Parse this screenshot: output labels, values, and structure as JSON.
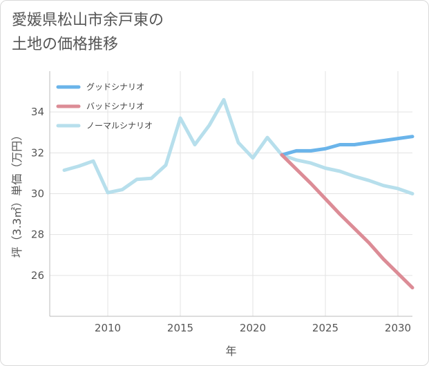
{
  "title": "愛媛県松山市余戸東の\n土地の価格推移",
  "chart_data": {
    "type": "line",
    "xlabel": "年",
    "ylabel": "坪（3.3㎡）単価（万円）",
    "xlim": [
      2006,
      2031
    ],
    "ylim": [
      24,
      36
    ],
    "xticks": [
      2010,
      2015,
      2020,
      2025,
      2030
    ],
    "yticks": [
      26,
      28,
      30,
      32,
      34
    ],
    "grid": true,
    "legend_position": "top-left",
    "series": [
      {
        "name": "グッドシナリオ",
        "color": "#6ab4ea",
        "x": [
          2022,
          2023,
          2024,
          2025,
          2026,
          2027,
          2028,
          2029,
          2030,
          2031
        ],
        "values": [
          31.9,
          32.1,
          32.1,
          32.2,
          32.4,
          32.4,
          32.5,
          32.6,
          32.7,
          32.8
        ]
      },
      {
        "name": "バッドシナリオ",
        "color": "#dc8c96",
        "x": [
          2022,
          2023,
          2024,
          2025,
          2026,
          2027,
          2028,
          2029,
          2030,
          2031
        ],
        "values": [
          31.9,
          31.2,
          30.5,
          29.75,
          29.0,
          28.3,
          27.6,
          26.8,
          26.1,
          25.4
        ]
      },
      {
        "name": "ノーマルシナリオ",
        "color": "#b7dfec",
        "x": [
          2007,
          2008,
          2009,
          2010,
          2011,
          2012,
          2013,
          2014,
          2015,
          2016,
          2017,
          2018,
          2019,
          2020,
          2021,
          2022,
          2023,
          2024,
          2025,
          2026,
          2027,
          2028,
          2029,
          2030,
          2031
        ],
        "values": [
          31.15,
          31.35,
          31.6,
          30.05,
          30.2,
          30.7,
          30.75,
          31.4,
          33.7,
          32.4,
          33.35,
          34.6,
          32.5,
          31.75,
          32.75,
          31.9,
          31.65,
          31.5,
          31.25,
          31.1,
          30.85,
          30.65,
          30.4,
          30.25,
          30.0
        ]
      }
    ]
  }
}
